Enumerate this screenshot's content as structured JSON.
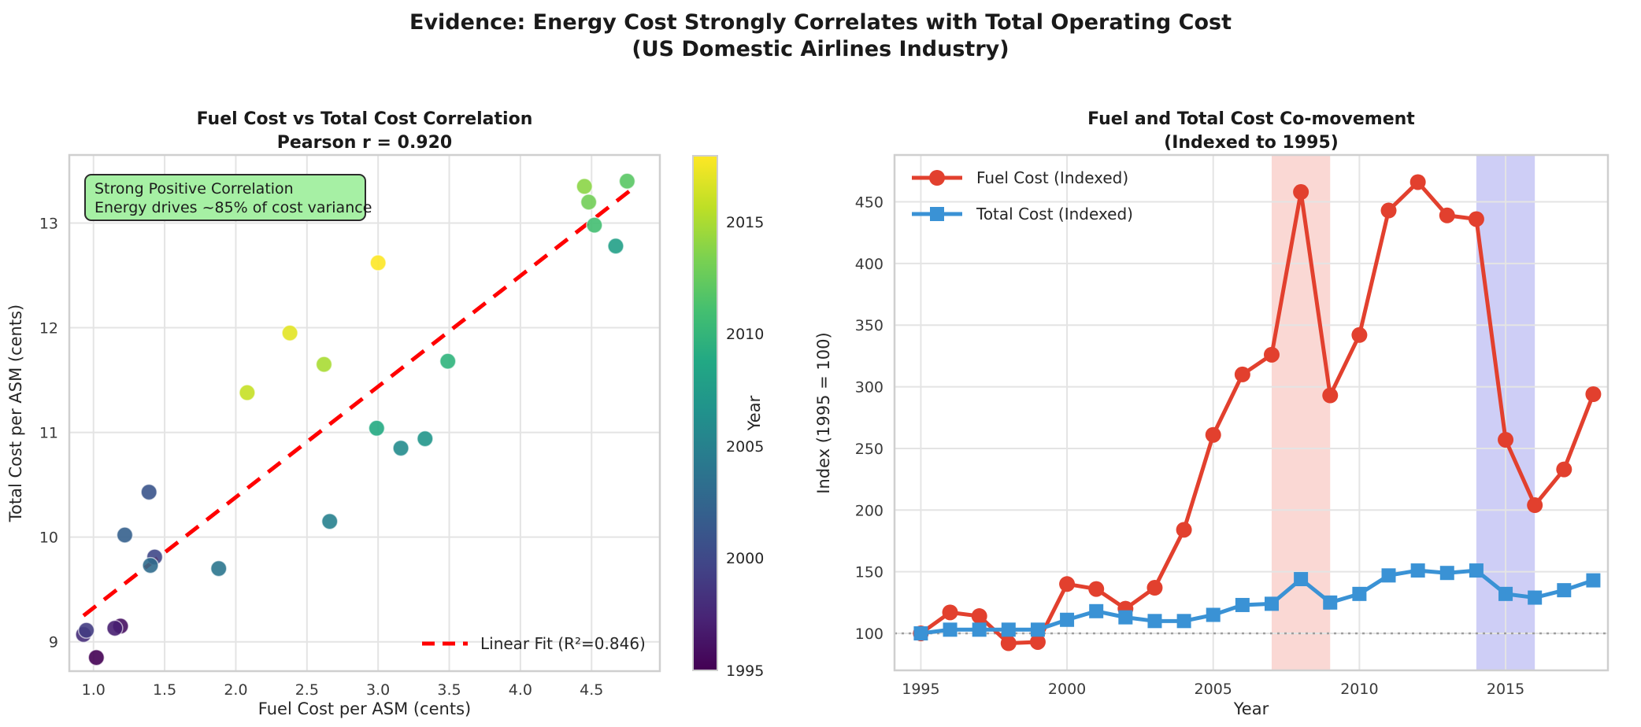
{
  "figure": {
    "suptitle_line1": "Evidence: Energy Cost Strongly Correlates with Total Operating Cost",
    "suptitle_line2": "(US Domestic Airlines Industry)"
  },
  "style_colors": {
    "grid": "#e4e4e4",
    "spine": "#cfcfcf",
    "baseline_dotted": "#9e9e9e",
    "fit_line_red": "#ff0000",
    "fuel_red": "#e2402e",
    "total_blue": "#3a92d5",
    "red_band": "#e74c3c",
    "blue_band": "#5050e0",
    "annotation_bg": "#a6f0a4",
    "annotation_border": "#2b2b2b"
  },
  "chart_data": [
    {
      "type": "scatter",
      "title": "Fuel Cost vs Total Cost Correlation",
      "subtitle": "Pearson r = 0.920",
      "xlabel": "Fuel Cost per ASM (cents)",
      "ylabel": "Total Cost per ASM (cents)",
      "xlim": [
        0.83,
        4.98
      ],
      "ylim": [
        8.72,
        13.65
      ],
      "xtick_values": [
        1.0,
        1.5,
        2.0,
        2.5,
        3.0,
        3.5,
        4.0,
        4.5
      ],
      "xtick_labels": [
        "1.0",
        "1.5",
        "2.0",
        "2.5",
        "3.0",
        "3.5",
        "4.0",
        "4.5"
      ],
      "ytick_values": [
        9,
        10,
        11,
        12,
        13
      ],
      "ytick_labels": [
        "9",
        "10",
        "11",
        "12",
        "13"
      ],
      "grid": true,
      "points": [
        {
          "year": 1995,
          "x": 1.02,
          "y": 8.85,
          "color": "#440154"
        },
        {
          "year": 1996,
          "x": 1.19,
          "y": 9.15,
          "color": "#461062"
        },
        {
          "year": 1997,
          "x": 1.15,
          "y": 9.13,
          "color": "#471f71"
        },
        {
          "year": 1998,
          "x": 0.93,
          "y": 9.07,
          "color": "#462e7a"
        },
        {
          "year": 1999,
          "x": 0.95,
          "y": 9.11,
          "color": "#433c82"
        },
        {
          "year": 2000,
          "x": 1.43,
          "y": 9.81,
          "color": "#3f4888"
        },
        {
          "year": 2001,
          "x": 1.39,
          "y": 10.43,
          "color": "#3a548b"
        },
        {
          "year": 2002,
          "x": 1.22,
          "y": 10.02,
          "color": "#35608d"
        },
        {
          "year": 2003,
          "x": 1.4,
          "y": 9.73,
          "color": "#306b8d"
        },
        {
          "year": 2004,
          "x": 1.88,
          "y": 9.7,
          "color": "#2b768e"
        },
        {
          "year": 2005,
          "x": 2.66,
          "y": 10.15,
          "color": "#27818e"
        },
        {
          "year": 2006,
          "x": 3.16,
          "y": 10.85,
          "color": "#238c8d"
        },
        {
          "year": 2007,
          "x": 3.33,
          "y": 10.94,
          "color": "#21968b"
        },
        {
          "year": 2008,
          "x": 4.67,
          "y": 12.78,
          "color": "#22a087"
        },
        {
          "year": 2009,
          "x": 2.99,
          "y": 11.04,
          "color": "#24aa82"
        },
        {
          "year": 2010,
          "x": 3.49,
          "y": 11.68,
          "color": "#2fb47c"
        },
        {
          "year": 2011,
          "x": 4.52,
          "y": 12.98,
          "color": "#43be71"
        },
        {
          "year": 2012,
          "x": 4.75,
          "y": 13.4,
          "color": "#59c664"
        },
        {
          "year": 2013,
          "x": 4.48,
          "y": 13.2,
          "color": "#71ce57"
        },
        {
          "year": 2014,
          "x": 4.45,
          "y": 13.35,
          "color": "#8bd546"
        },
        {
          "year": 2015,
          "x": 2.62,
          "y": 11.65,
          "color": "#a9db33"
        },
        {
          "year": 2016,
          "x": 2.08,
          "y": 11.38,
          "color": "#c5e026"
        },
        {
          "year": 2017,
          "x": 2.38,
          "y": 11.95,
          "color": "#e2e425"
        },
        {
          "year": 2018,
          "x": 3.0,
          "y": 12.62,
          "color": "#fde725"
        }
      ],
      "fit_line": {
        "x1": 0.93,
        "y1": 9.25,
        "x2": 4.78,
        "y2": 13.32,
        "label": "Linear Fit (R²=0.846)"
      },
      "annotation": {
        "line1": "Strong Positive Correlation",
        "line2": "Energy drives ~85% of cost variance"
      },
      "colorbar": {
        "label": "Year",
        "tick_values": [
          1995,
          2000,
          2005,
          2010,
          2015
        ],
        "range": [
          1995,
          2018
        ]
      }
    },
    {
      "type": "line",
      "title": "Fuel and Total Cost Co-movement",
      "subtitle": "(Indexed to 1995)",
      "xlabel": "Year",
      "ylabel": "Index (1995 = 100)",
      "xlim": [
        1994.1,
        2018.5
      ],
      "ylim": [
        70,
        488
      ],
      "xtick_values": [
        1995,
        2000,
        2005,
        2010,
        2015
      ],
      "xtick_labels": [
        "1995",
        "2000",
        "2005",
        "2010",
        "2015"
      ],
      "ytick_values": [
        100,
        150,
        200,
        250,
        300,
        350,
        400,
        450
      ],
      "ytick_labels": [
        "100",
        "150",
        "200",
        "250",
        "300",
        "350",
        "400",
        "450"
      ],
      "grid": true,
      "legend_position": "upper left",
      "x": [
        1995,
        1996,
        1997,
        1998,
        1999,
        2000,
        2001,
        2002,
        2003,
        2004,
        2005,
        2006,
        2007,
        2008,
        2009,
        2010,
        2011,
        2012,
        2013,
        2014,
        2015,
        2016,
        2017,
        2018
      ],
      "series": [
        {
          "name": "Fuel Cost (Indexed)",
          "marker": "circle",
          "color": "#e2402e",
          "values": [
            100,
            117,
            114,
            92,
            93,
            140,
            136,
            120,
            137,
            184,
            261,
            310,
            326,
            458,
            293,
            342,
            443,
            466,
            439,
            436,
            257,
            204,
            233,
            294
          ]
        },
        {
          "name": "Total Cost (Indexed)",
          "marker": "square",
          "color": "#3a92d5",
          "values": [
            100,
            103,
            103,
            103,
            103,
            111,
            118,
            113,
            110,
            110,
            115,
            123,
            124,
            144,
            125,
            132,
            147,
            151,
            149,
            151,
            132,
            129,
            135,
            143
          ]
        }
      ],
      "baseline_value": 100,
      "bands": [
        {
          "x_from": 2007,
          "x_to": 2009,
          "color": "#e74c3c",
          "opacity": 0.22,
          "name": "fuel-spike-2008-band"
        },
        {
          "x_from": 2014,
          "x_to": 2016,
          "color": "#5050e0",
          "opacity": 0.28,
          "name": "oil-crash-2015-band"
        }
      ]
    }
  ]
}
